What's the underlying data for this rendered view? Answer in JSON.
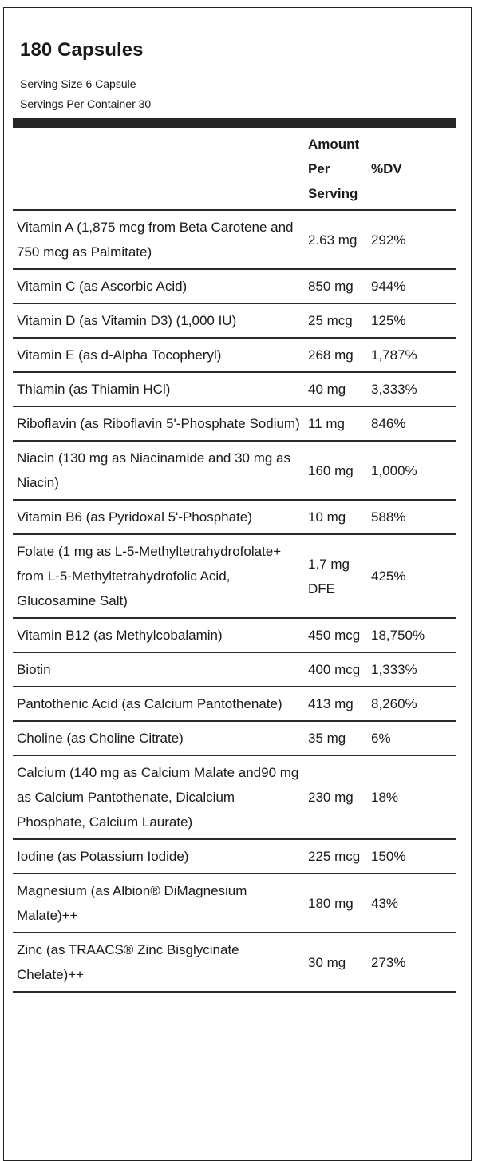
{
  "header": {
    "title": "180 Capsules",
    "serving_size": "Serving Size 6 Capsule",
    "servings_per_container": "Servings Per Container 30"
  },
  "table": {
    "columns": [
      "",
      "Amount Per Serving",
      "%DV"
    ],
    "rows": [
      {
        "name": "Vitamin A (1,875 mcg from Beta Carotene and 750 mcg as Palmitate)",
        "amount": "2.63 mg",
        "dv": "292%"
      },
      {
        "name": "Vitamin C (as Ascorbic Acid)",
        "amount": "850 mg",
        "dv": "944%"
      },
      {
        "name": "Vitamin D (as Vitamin D3) (1,000 IU)",
        "amount": "25 mcg",
        "dv": "125%"
      },
      {
        "name": "Vitamin E (as d-Alpha Tocopheryl)",
        "amount": "268 mg",
        "dv": "1,787%"
      },
      {
        "name": "Thiamin (as Thiamin HCl)",
        "amount": "40 mg",
        "dv": "3,333%"
      },
      {
        "name": "Riboflavin (as Riboflavin 5'-Phosphate Sodium)",
        "amount": "11 mg",
        "dv": "846%"
      },
      {
        "name": "Niacin (130 mg as Niacinamide and 30 mg as Niacin)",
        "amount": "160 mg",
        "dv": "1,000%"
      },
      {
        "name": "Vitamin B6 (as Pyridoxal 5'-Phosphate)",
        "amount": "10 mg",
        "dv": "588%"
      },
      {
        "name": "Folate (1 mg as L-5-Methyltetrahydrofolate+ from L-5-Methyltetrahydrofolic Acid, Glucosamine Salt)",
        "amount": "1.7 mg DFE",
        "dv": "425%"
      },
      {
        "name": "Vitamin B12 (as Methylcobalamin)",
        "amount": "450 mcg",
        "dv": "18,750%"
      },
      {
        "name": "Biotin",
        "amount": "400 mcg",
        "dv": "1,333%"
      },
      {
        "name": "Pantothenic Acid (as Calcium Pantothenate)",
        "amount": "413 mg",
        "dv": "8,260%"
      },
      {
        "name": "Choline (as Choline Citrate)",
        "amount": "35 mg",
        "dv": "6%"
      },
      {
        "name": "Calcium (140 mg as Calcium Malate and90 mg as Calcium Pantothenate, Dicalcium Phosphate, Calcium Laurate)",
        "amount": "230 mg",
        "dv": "18%"
      },
      {
        "name": "Iodine (as Potassium Iodide)",
        "amount": "225 mcg",
        "dv": "150%"
      },
      {
        "name": "Magnesium (as Albion® DiMagnesium Malate)++",
        "amount": "180 mg",
        "dv": "43%"
      },
      {
        "name": "Zinc (as TRAACS® Zinc Bisglycinate Chelate)++",
        "amount": "30 mg",
        "dv": "273%"
      }
    ]
  }
}
